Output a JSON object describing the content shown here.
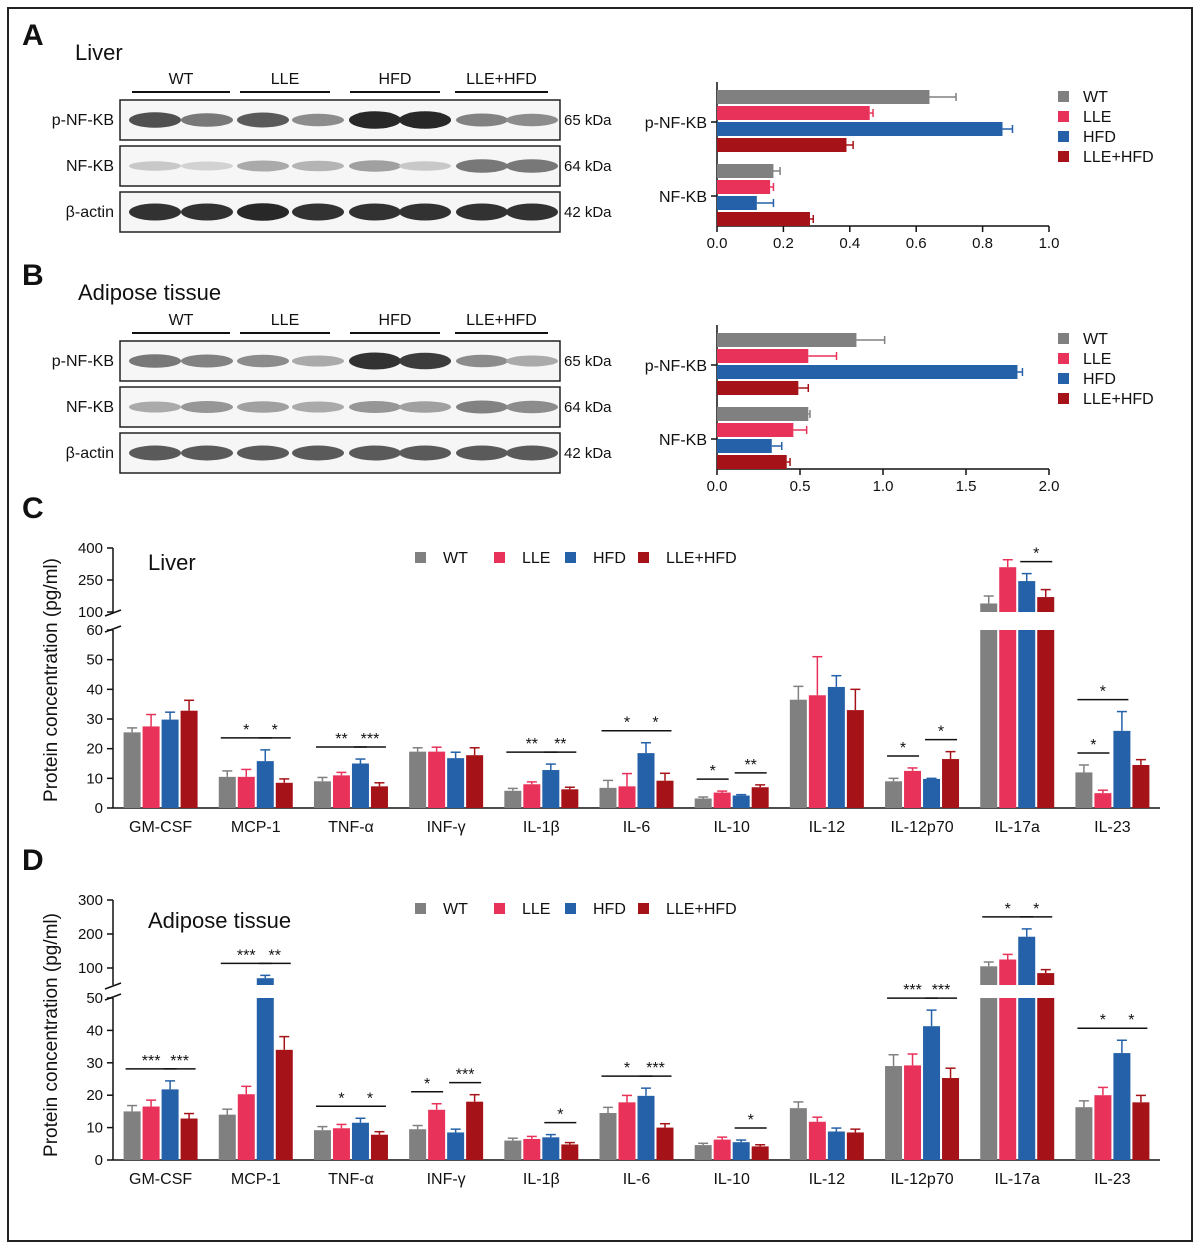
{
  "colors": {
    "WT": "#808080",
    "LLE": "#E8325A",
    "HFD": "#2461A8",
    "LLE+HFD": "#A51217"
  },
  "groups": [
    "WT",
    "LLE",
    "HFD",
    "LLE+HFD"
  ],
  "panels": {
    "A": {
      "letter": "A",
      "title": "Liver"
    },
    "B": {
      "letter": "B",
      "title": "Adipose  tissue"
    },
    "C": {
      "letter": "C",
      "title": "Liver"
    },
    "D": {
      "letter": "D",
      "title": "Adipose  tissue"
    }
  },
  "blot": {
    "lanes": [
      "WT",
      "LLE",
      "HFD",
      "LLE+HFD"
    ],
    "rows": [
      "p-NF-KB",
      "NF-KB",
      "β-actin"
    ],
    "sizes": [
      "65 kDa",
      "64 kDa",
      "42 kDa"
    ]
  },
  "y_label": "Protein concentration (pg/ml)",
  "chart_data": [
    {
      "panel": "A",
      "type": "bar",
      "orientation": "horizontal",
      "categories": [
        "p-NF-KB",
        "NF-KB"
      ],
      "series": [
        {
          "name": "WT",
          "values": [
            0.64,
            0.17
          ],
          "errors": [
            0.08,
            0.02
          ]
        },
        {
          "name": "LLE",
          "values": [
            0.46,
            0.16
          ],
          "errors": [
            0.01,
            0.01
          ]
        },
        {
          "name": "HFD",
          "values": [
            0.86,
            0.12
          ],
          "errors": [
            0.03,
            0.05
          ]
        },
        {
          "name": "LLE+HFD",
          "values": [
            0.39,
            0.28
          ],
          "errors": [
            0.02,
            0.01
          ]
        }
      ],
      "xlim": [
        0,
        1.0
      ],
      "xticks": [
        "0.0",
        "0.2",
        "0.4",
        "0.6",
        "0.8",
        "1.0"
      ],
      "legend": "right"
    },
    {
      "panel": "B",
      "type": "bar",
      "orientation": "horizontal",
      "categories": [
        "p-NF-KB",
        "NF-KB"
      ],
      "series": [
        {
          "name": "WT",
          "values": [
            0.84,
            0.55
          ],
          "errors": [
            0.17,
            0.01
          ]
        },
        {
          "name": "LLE",
          "values": [
            0.55,
            0.46
          ],
          "errors": [
            0.17,
            0.08
          ]
        },
        {
          "name": "HFD",
          "values": [
            1.81,
            0.33
          ],
          "errors": [
            0.03,
            0.06
          ]
        },
        {
          "name": "LLE+HFD",
          "values": [
            0.49,
            0.42
          ],
          "errors": [
            0.06,
            0.02
          ]
        }
      ],
      "xlim": [
        0,
        2.0
      ],
      "xticks": [
        "0.0",
        "0.5",
        "1.0",
        "1.5",
        "2.0"
      ],
      "legend": "right"
    },
    {
      "panel": "C",
      "type": "bar",
      "categories": [
        "GM-CSF",
        "MCP-1",
        "TNF-α",
        "INF-γ",
        "IL-1β",
        "IL-6",
        "IL-10",
        "IL-12",
        "IL-12p70",
        "IL-17a",
        "IL-23"
      ],
      "series": [
        {
          "name": "WT",
          "values": [
            25.5,
            10.5,
            9,
            19,
            5.8,
            6.8,
            3.2,
            36.5,
            9,
            140,
            12
          ],
          "errors": [
            1.5,
            2,
            1.3,
            1.3,
            0.8,
            2.5,
            0.5,
            4.5,
            1,
            35,
            2.5
          ]
        },
        {
          "name": "LLE",
          "values": [
            27.5,
            10.5,
            11,
            19,
            8,
            7.3,
            5.2,
            38,
            12.5,
            310,
            5
          ],
          "errors": [
            4,
            2.5,
            1,
            1.5,
            0.8,
            4.3,
            0.5,
            13,
            1,
            35,
            1
          ]
        },
        {
          "name": "HFD",
          "values": [
            29.8,
            15.8,
            15,
            16.8,
            12.8,
            18.5,
            4.2,
            40.8,
            9.8,
            245,
            26
          ],
          "errors": [
            2.5,
            3.8,
            1.5,
            2,
            2,
            3.5,
            0.3,
            3.8,
            0.2,
            35,
            6.5
          ]
        },
        {
          "name": "LLE+HFD",
          "values": [
            32.8,
            8.5,
            7.3,
            17.8,
            6.3,
            9.2,
            7,
            33,
            16.5,
            170,
            14.5
          ],
          "errors": [
            3.5,
            1.3,
            1.2,
            2.5,
            0.7,
            2.5,
            0.8,
            7,
            2.5,
            35,
            1.8
          ]
        }
      ],
      "y_axis_lower": {
        "range": [
          0,
          60
        ],
        "ticks": [
          "0",
          "10",
          "20",
          "30",
          "40",
          "50",
          "60"
        ]
      },
      "y_axis_upper": {
        "range": [
          100,
          400
        ],
        "ticks": [
          "100",
          "250",
          "400"
        ]
      },
      "ylabel": "Protein concentration (pg/ml)",
      "significance": [
        {
          "category": "MCP-1",
          "between": [
            "WT",
            "HFD"
          ],
          "label": "*"
        },
        {
          "category": "MCP-1",
          "between": [
            "HFD",
            "LLE+HFD"
          ],
          "label": "*"
        },
        {
          "category": "TNF-α",
          "between": [
            "WT",
            "HFD"
          ],
          "label": "**"
        },
        {
          "category": "TNF-α",
          "between": [
            "HFD",
            "LLE+HFD"
          ],
          "label": "***"
        },
        {
          "category": "IL-1β",
          "between": [
            "WT",
            "HFD"
          ],
          "label": "**"
        },
        {
          "category": "IL-1β",
          "between": [
            "HFD",
            "LLE+HFD"
          ],
          "label": "**"
        },
        {
          "category": "IL-6",
          "between": [
            "WT",
            "HFD"
          ],
          "label": "*"
        },
        {
          "category": "IL-6",
          "between": [
            "HFD",
            "LLE+HFD"
          ],
          "label": "*"
        },
        {
          "category": "IL-10",
          "between": [
            "WT",
            "LLE"
          ],
          "label": "*"
        },
        {
          "category": "IL-10",
          "between": [
            "HFD",
            "LLE+HFD"
          ],
          "label": "**"
        },
        {
          "category": "IL-12p70",
          "between": [
            "WT",
            "LLE"
          ],
          "label": "*"
        },
        {
          "category": "IL-12p70",
          "between": [
            "HFD",
            "LLE+HFD"
          ],
          "label": "*"
        },
        {
          "category": "IL-17a",
          "between": [
            "HFD",
            "LLE+HFD"
          ],
          "label": "*"
        },
        {
          "category": "IL-23",
          "between": [
            "WT",
            "HFD"
          ],
          "label": "*"
        },
        {
          "category": "IL-23",
          "between": [
            "WT",
            "LLE"
          ],
          "label": "*"
        }
      ],
      "legend": "top"
    },
    {
      "panel": "D",
      "type": "bar",
      "categories": [
        "GM-CSF",
        "MCP-1",
        "TNF-α",
        "INF-γ",
        "IL-1β",
        "IL-6",
        "IL-10",
        "IL-12",
        "IL-12p70",
        "IL-17a",
        "IL-23"
      ],
      "series": [
        {
          "name": "WT",
          "values": [
            15,
            14,
            9.2,
            9.5,
            6,
            14.5,
            4.6,
            16,
            29,
            105,
            16.3
          ]
        },
        {
          "name": "LLE",
          "values": [
            16.5,
            20.3,
            9.8,
            15.5,
            6.5,
            17.8,
            6.3,
            11.8,
            29.2,
            125,
            20
          ]
        },
        {
          "name": "HFD",
          "values": [
            21.8,
            70,
            11.5,
            8.5,
            7,
            19.8,
            5.5,
            8.8,
            41.3,
            192,
            33
          ]
        },
        {
          "name": "LLE+HFD",
          "values": [
            12.8,
            34,
            7.8,
            18,
            4.8,
            10,
            4.2,
            8.5,
            25.3,
            85,
            17.8
          ]
        }
      ],
      "y_axis_lower": {
        "range": [
          0,
          50
        ],
        "ticks": [
          "0",
          "10",
          "20",
          "30",
          "40",
          "50"
        ]
      },
      "y_axis_upper": {
        "range": [
          50,
          300
        ],
        "ticks": [
          "100",
          "200",
          "300"
        ]
      },
      "ylabel": "Protein concentration (pg/ml)",
      "significance": [
        {
          "category": "GM-CSF",
          "between": [
            "WT",
            "HFD"
          ],
          "label": "***"
        },
        {
          "category": "GM-CSF",
          "between": [
            "HFD",
            "LLE+HFD"
          ],
          "label": "***"
        },
        {
          "category": "MCP-1",
          "between": [
            "WT",
            "HFD"
          ],
          "label": "***"
        },
        {
          "category": "MCP-1",
          "between": [
            "HFD",
            "LLE+HFD"
          ],
          "label": "**"
        },
        {
          "category": "TNF-α",
          "between": [
            "WT",
            "HFD"
          ],
          "label": "*"
        },
        {
          "category": "TNF-α",
          "between": [
            "HFD",
            "LLE+HFD"
          ],
          "label": "*"
        },
        {
          "category": "INF-γ",
          "between": [
            "WT",
            "LLE"
          ],
          "label": "*"
        },
        {
          "category": "INF-γ",
          "between": [
            "HFD",
            "LLE+HFD"
          ],
          "label": "***"
        },
        {
          "category": "IL-1β",
          "between": [
            "HFD",
            "LLE+HFD"
          ],
          "label": "*"
        },
        {
          "category": "IL-6",
          "between": [
            "WT",
            "HFD"
          ],
          "label": "*"
        },
        {
          "category": "IL-6",
          "between": [
            "HFD",
            "LLE+HFD"
          ],
          "label": "***"
        },
        {
          "category": "IL-10",
          "between": [
            "HFD",
            "LLE+HFD"
          ],
          "label": "*"
        },
        {
          "category": "IL-12p70",
          "between": [
            "WT",
            "HFD"
          ],
          "label": "***"
        },
        {
          "category": "IL-12p70",
          "between": [
            "HFD",
            "LLE+HFD"
          ],
          "label": "***"
        },
        {
          "category": "IL-17a",
          "between": [
            "WT",
            "HFD"
          ],
          "label": "*"
        },
        {
          "category": "IL-17a",
          "between": [
            "HFD",
            "LLE+HFD"
          ],
          "label": "*"
        },
        {
          "category": "IL-23",
          "between": [
            "WT",
            "HFD"
          ],
          "label": "*"
        },
        {
          "category": "IL-23",
          "between": [
            "HFD",
            "LLE+HFD"
          ],
          "label": "*"
        }
      ],
      "legend": "top"
    }
  ]
}
